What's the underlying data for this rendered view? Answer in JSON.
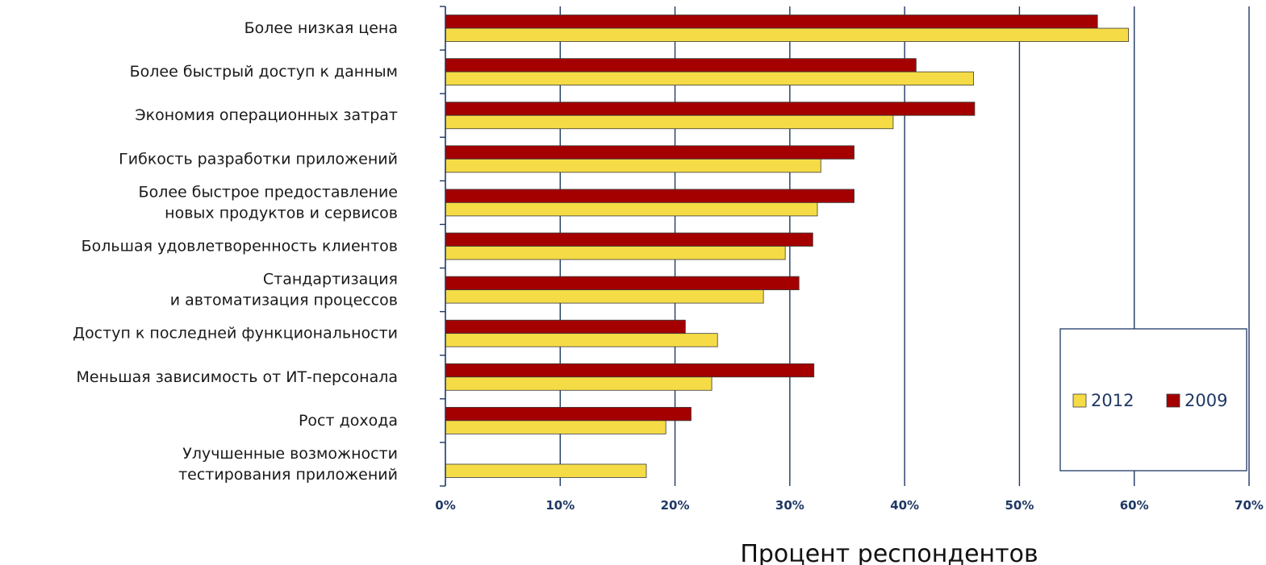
{
  "chart_data": {
    "type": "bar",
    "orientation": "horizontal",
    "xlabel": "Процент респондентов",
    "xlim": [
      0,
      70
    ],
    "x_ticks": [
      "0%",
      "10%",
      "20%",
      "30%",
      "40%",
      "50%",
      "60%",
      "70%"
    ],
    "grid": "vertical",
    "legend_position": "bottom-right",
    "categories": [
      [
        "Более низкая цена"
      ],
      [
        "Более быстрый доступ к данным"
      ],
      [
        "Экономия операционных затрат"
      ],
      [
        "Гибкость разработки приложений"
      ],
      [
        "Более быстрое предоставление",
        "новых продуктов и сервисов"
      ],
      [
        "Большая удовлетворенность клиентов"
      ],
      [
        "Стандартизация",
        "и автоматизация процессов"
      ],
      [
        "Доступ к последней функциональности"
      ],
      [
        "Меньшая зависимость от ИТ-персонала"
      ],
      [
        "Рост дохода"
      ],
      [
        "Улучшенные возможности",
        "тестирования приложений"
      ]
    ],
    "series": [
      {
        "name": "2009",
        "color": "#a40000",
        "values": [
          56.8,
          41.0,
          46.1,
          35.6,
          35.6,
          32.0,
          30.8,
          20.9,
          32.1,
          21.4,
          null
        ]
      },
      {
        "name": "2012",
        "color": "#f5dc46",
        "values": [
          59.5,
          46.0,
          39.0,
          32.7,
          32.4,
          29.6,
          27.7,
          23.7,
          23.2,
          19.2,
          17.5
        ]
      }
    ],
    "legend": [
      {
        "name": "2012",
        "color": "#f5dc46"
      },
      {
        "name": "2009",
        "color": "#a40000"
      }
    ]
  }
}
